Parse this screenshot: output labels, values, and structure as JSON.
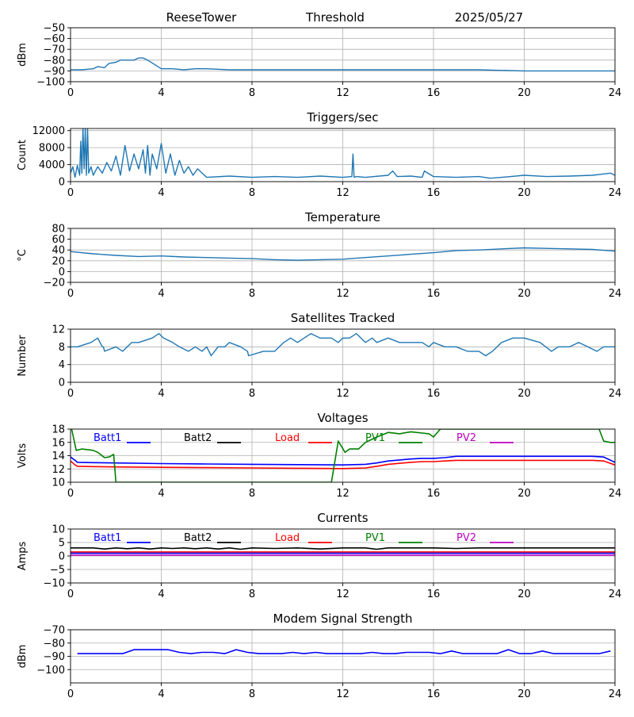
{
  "header": {
    "site": "ReeseTower",
    "mode": "Threshold",
    "date": "2025/05/27"
  },
  "colors": {
    "default_series": "#1f77b4",
    "batt1": "#0000ff",
    "batt2": "#000000",
    "load": "#ff0000",
    "pv1": "#008000",
    "pv2": "#bf00bf",
    "grid": "#b0b0b0"
  },
  "chart_data": [
    {
      "id": "threshold",
      "type": "line",
      "title": "",
      "xlabel": "",
      "ylabel": "dBm",
      "xlim": [
        0,
        24
      ],
      "ylim": [
        -100,
        -50
      ],
      "xticks": [
        0,
        4,
        8,
        12,
        16,
        20,
        24
      ],
      "yticks": [
        -100,
        -90,
        -80,
        -70,
        -60,
        -50
      ],
      "grid": true,
      "series": [
        {
          "color": "#1f77b4",
          "x": [
            0,
            0.5,
            1,
            1.2,
            1.5,
            1.7,
            2.0,
            2.2,
            2.5,
            2.8,
            3.0,
            3.2,
            3.4,
            3.7,
            4.0,
            4.5,
            5.0,
            5.5,
            6.0,
            7.0,
            8.0,
            10,
            12,
            14,
            16,
            18,
            20,
            22,
            24
          ],
          "y": [
            -89,
            -89,
            -88,
            -86,
            -87,
            -83,
            -82,
            -80,
            -80,
            -80,
            -78,
            -78,
            -80,
            -84,
            -88,
            -88,
            -89,
            -88,
            -88,
            -89,
            -89,
            -89,
            -89,
            -89,
            -89,
            -89,
            -90,
            -90,
            -90
          ]
        }
      ]
    },
    {
      "id": "triggers",
      "type": "line",
      "title": "Triggers/sec",
      "xlabel": "",
      "ylabel": "Count",
      "xlim": [
        0,
        24
      ],
      "ylim": [
        0,
        12500
      ],
      "xticks": [
        0,
        4,
        8,
        12,
        16,
        20,
        24
      ],
      "yticks": [
        0,
        4000,
        8000,
        12000
      ],
      "grid": true,
      "series": [
        {
          "color": "#1f77b4",
          "x": [
            0,
            0.1,
            0.2,
            0.3,
            0.4,
            0.45,
            0.5,
            0.55,
            0.6,
            0.65,
            0.7,
            0.75,
            0.8,
            0.9,
            1.0,
            1.2,
            1.4,
            1.6,
            1.8,
            2.0,
            2.2,
            2.4,
            2.6,
            2.8,
            3.0,
            3.2,
            3.3,
            3.4,
            3.5,
            3.6,
            3.8,
            4.0,
            4.2,
            4.4,
            4.6,
            4.8,
            5.0,
            5.2,
            5.4,
            5.6,
            6.0,
            7.0,
            8.0,
            9.0,
            10.0,
            11.0,
            12.0,
            12.4,
            12.45,
            12.5,
            12.6,
            13.0,
            14.0,
            14.2,
            14.4,
            15.0,
            15.5,
            15.6,
            16.0,
            17.0,
            18.0,
            18.5,
            19.0,
            20.0,
            21.0,
            22.0,
            23.0,
            23.8,
            24.0
          ],
          "y": [
            2000,
            3500,
            1000,
            3800,
            1500,
            9500,
            2000,
            12500,
            3000,
            12500,
            1500,
            12500,
            2000,
            3500,
            1500,
            3500,
            2000,
            4500,
            2500,
            6000,
            1500,
            8500,
            2500,
            6500,
            3000,
            7500,
            2000,
            8500,
            1500,
            6500,
            3000,
            9000,
            2000,
            6500,
            1500,
            5000,
            2000,
            3500,
            1500,
            3000,
            1000,
            1300,
            1000,
            1200,
            1000,
            1300,
            1000,
            1200,
            6500,
            1000,
            1200,
            1000,
            1500,
            2500,
            1200,
            1300,
            1000,
            2500,
            1200,
            1000,
            1200,
            800,
            1000,
            1500,
            1200,
            1300,
            1500,
            2000,
            1500
          ]
        }
      ]
    },
    {
      "id": "temperature",
      "type": "line",
      "title": "Temperature",
      "xlabel": "",
      "ylabel": "°C",
      "xlim": [
        0,
        24
      ],
      "ylim": [
        -20,
        80
      ],
      "xticks": [
        0,
        4,
        8,
        12,
        16,
        20,
        24
      ],
      "yticks": [
        -20,
        0,
        20,
        40,
        60,
        80
      ],
      "grid": true,
      "series": [
        {
          "color": "#1f77b4",
          "x": [
            0,
            1,
            2,
            3,
            4,
            5,
            6,
            7,
            8,
            9,
            10,
            11,
            12,
            13,
            14,
            15,
            16,
            17,
            18,
            19,
            20,
            21,
            22,
            23,
            24
          ],
          "y": [
            37,
            33,
            30,
            28,
            29,
            27,
            26,
            25,
            24,
            22,
            21,
            22,
            23,
            26,
            29,
            32,
            35,
            39,
            40,
            42,
            44,
            43,
            42,
            41,
            38
          ]
        }
      ]
    },
    {
      "id": "satellites",
      "type": "line",
      "title": "Satellites Tracked",
      "xlabel": "",
      "ylabel": "Number",
      "xlim": [
        0,
        24
      ],
      "ylim": [
        0,
        12
      ],
      "xticks": [
        0,
        4,
        8,
        12,
        16,
        20,
        24
      ],
      "yticks": [
        0,
        4,
        8,
        12
      ],
      "grid": true,
      "series": [
        {
          "color": "#1f77b4",
          "x": [
            0,
            0.3,
            0.9,
            1.2,
            1.4,
            1.45,
            1.5,
            2.0,
            2.3,
            2.7,
            3.0,
            3.6,
            3.9,
            4.1,
            4.5,
            4.8,
            5.2,
            5.5,
            5.8,
            6.0,
            6.2,
            6.5,
            6.8,
            7.0,
            7.5,
            7.8,
            7.85,
            8.5,
            9.0,
            9.2,
            9.4,
            9.7,
            10.0,
            10.3,
            10.6,
            11.0,
            11.5,
            11.8,
            12.0,
            12.3,
            12.6,
            13.0,
            13.3,
            13.5,
            14.0,
            14.5,
            15.0,
            15.5,
            15.8,
            16.0,
            16.5,
            17.0,
            17.5,
            18.0,
            18.3,
            18.6,
            19.0,
            19.5,
            20.0,
            20.7,
            21.2,
            21.5,
            22.0,
            22.4,
            22.8,
            23.2,
            23.5,
            24.0
          ],
          "y": [
            8,
            8,
            9,
            10,
            8,
            8,
            7,
            8,
            7,
            9,
            9,
            10,
            11,
            10,
            9,
            8,
            7,
            8,
            7,
            8,
            6,
            8,
            8,
            9,
            8,
            7,
            6,
            7,
            7,
            8,
            9,
            10,
            9,
            10,
            11,
            10,
            10,
            9,
            10,
            10,
            11,
            9,
            10,
            9,
            10,
            9,
            9,
            9,
            8,
            9,
            8,
            8,
            7,
            7,
            6,
            7,
            9,
            10,
            10,
            9,
            7,
            8,
            8,
            9,
            8,
            7,
            8,
            8
          ]
        }
      ]
    },
    {
      "id": "voltages",
      "type": "line",
      "title": "Voltages",
      "xlabel": "",
      "ylabel": "Volts",
      "xlim": [
        0,
        24
      ],
      "ylim": [
        10,
        18
      ],
      "xticks": [
        0,
        4,
        8,
        12,
        16,
        20,
        24
      ],
      "yticks": [
        10,
        12,
        14,
        16,
        18
      ],
      "grid": true,
      "legend": [
        "Batt1",
        "Batt2",
        "Load",
        "PV1",
        "PV2"
      ],
      "series": [
        {
          "name": "Batt1",
          "color": "#0000ff",
          "x": [
            0,
            0.2,
            0.3,
            1,
            2,
            4,
            6,
            8,
            10,
            12,
            13,
            13.5,
            14,
            15,
            15.5,
            16,
            16.5,
            17,
            20,
            23,
            23.5,
            24
          ],
          "y": [
            13.8,
            13.3,
            13,
            12.95,
            12.9,
            12.8,
            12.75,
            12.7,
            12.65,
            12.6,
            12.7,
            12.9,
            13.2,
            13.5,
            13.6,
            13.6,
            13.7,
            13.9,
            13.9,
            13.9,
            13.8,
            13
          ]
        },
        {
          "name": "Load",
          "color": "#ff0000",
          "x": [
            0,
            0.2,
            0.3,
            1,
            2,
            4,
            6,
            8,
            10,
            12,
            13,
            13.5,
            14,
            15,
            15.5,
            16,
            16.5,
            17,
            20,
            23,
            23.5,
            24
          ],
          "y": [
            13.2,
            12.6,
            12.4,
            12.35,
            12.3,
            12.25,
            12.2,
            12.15,
            12.1,
            12.05,
            12.15,
            12.4,
            12.7,
            13,
            13.1,
            13.1,
            13.2,
            13.3,
            13.3,
            13.3,
            13.2,
            12.6
          ]
        },
        {
          "name": "PV1",
          "color": "#008000",
          "x": [
            0.05,
            0.25,
            0.5,
            1.0,
            1.2,
            1.5,
            1.7,
            1.9,
            2.0,
            11.5,
            11.8,
            12.1,
            12.3,
            12.7,
            13.0,
            13.5,
            14.0,
            14.5,
            15.0,
            15.5,
            15.8,
            16.0,
            16.3,
            23.3,
            23.5,
            23.8,
            24.0
          ],
          "y": [
            18,
            14.8,
            15,
            14.8,
            14.5,
            13.7,
            13.8,
            14.2,
            10,
            10,
            16.2,
            14.5,
            15.0,
            15.0,
            16,
            16.8,
            17.5,
            17.3,
            17.6,
            17.4,
            17.3,
            16.8,
            18,
            18,
            16.2,
            16.0,
            16.0
          ]
        }
      ]
    },
    {
      "id": "currents",
      "type": "line",
      "title": "Currents",
      "xlabel": "",
      "ylabel": "Amps",
      "xlim": [
        0,
        24
      ],
      "ylim": [
        -10,
        10
      ],
      "xticks": [
        0,
        4,
        8,
        12,
        16,
        20,
        24
      ],
      "yticks": [
        -10,
        -5,
        0,
        5,
        10
      ],
      "grid": true,
      "legend": [
        "Batt1",
        "Batt2",
        "Load",
        "PV1",
        "PV2"
      ],
      "series": [
        {
          "name": "Batt2",
          "color": "#000000",
          "x": [
            0,
            1,
            1.5,
            2,
            2.5,
            3,
            3.5,
            4,
            4.5,
            5,
            5.5,
            6,
            6.5,
            7,
            7.5,
            8,
            9,
            10,
            11,
            12,
            13,
            13.5,
            14,
            15,
            16,
            17,
            18,
            20,
            22,
            24
          ],
          "y": [
            3,
            3,
            2.6,
            3,
            2.7,
            3,
            2.6,
            3,
            2.8,
            3,
            2.7,
            3,
            2.6,
            3,
            2.5,
            3,
            2.8,
            3,
            2.6,
            3,
            3,
            2.5,
            3,
            3,
            3,
            2.8,
            3,
            3,
            3,
            3
          ]
        },
        {
          "name": "Load",
          "color": "#ff0000",
          "x": [
            0,
            24
          ],
          "y": [
            1.5,
            1.5
          ]
        },
        {
          "name": "PV2",
          "color": "#bf00bf",
          "x": [
            0,
            24
          ],
          "y": [
            0.3,
            0.3
          ]
        },
        {
          "name": "Batt1",
          "color": "#0000ff",
          "x": [
            0,
            24
          ],
          "y": [
            1.0,
            1.0
          ]
        }
      ]
    },
    {
      "id": "modem",
      "type": "line",
      "title": "Modem Signal Strength",
      "xlabel": "",
      "ylabel": "dBm",
      "xlim": [
        0,
        24
      ],
      "ylim": [
        -110,
        -70
      ],
      "xticks": [
        0,
        4,
        8,
        12,
        16,
        20,
        24
      ],
      "yticks": [
        -100,
        -90,
        -80,
        -70
      ],
      "grid": true,
      "series": [
        {
          "color": "#0000ff",
          "x": [
            0.3,
            0.8,
            1.3,
            1.8,
            2.3,
            2.8,
            3.3,
            3.8,
            4.3,
            4.8,
            5.3,
            5.8,
            6.3,
            6.8,
            7.3,
            7.8,
            8.3,
            8.8,
            9.3,
            9.8,
            10.3,
            10.8,
            11.3,
            11.8,
            12.3,
            12.8,
            13.3,
            13.8,
            14.3,
            14.8,
            15.3,
            15.8,
            16.3,
            16.8,
            17.3,
            17.8,
            18.3,
            18.8,
            19.3,
            19.8,
            20.3,
            20.8,
            21.3,
            21.8,
            22.3,
            22.8,
            23.3,
            23.8
          ],
          "y": [
            -88,
            -88,
            -88,
            -88,
            -88,
            -85,
            -85,
            -85,
            -85,
            -87,
            -88,
            -87,
            -87,
            -88,
            -85,
            -87,
            -88,
            -88,
            -88,
            -87,
            -88,
            -87,
            -88,
            -88,
            -88,
            -88,
            -87,
            -88,
            -88,
            -87,
            -87,
            -87,
            -88,
            -86,
            -88,
            -88,
            -88,
            -88,
            -85,
            -88,
            -88,
            -86,
            -88,
            -88,
            -88,
            -88,
            -88,
            -86
          ]
        }
      ]
    }
  ]
}
